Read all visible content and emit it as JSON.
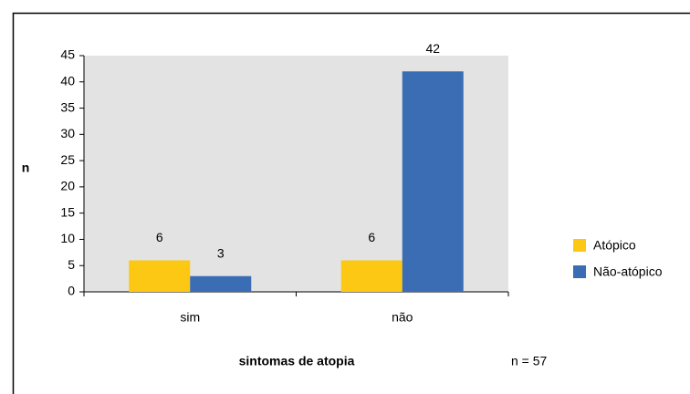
{
  "chart_data": {
    "type": "bar",
    "categories": [
      "sim",
      "não"
    ],
    "series": [
      {
        "name": "Atópico",
        "color": "#fcc814",
        "values": [
          6,
          6
        ]
      },
      {
        "name": "Não-atópico",
        "color": "#3a6db4",
        "values": [
          3,
          42
        ]
      }
    ],
    "ylim": [
      0,
      45
    ],
    "yticks": [
      0,
      5,
      10,
      15,
      20,
      25,
      30,
      35,
      40,
      45
    ],
    "ylabel": "n",
    "xlabel": "sintomas de atopia",
    "annotation": "n = 57",
    "legend": "right",
    "grid": false
  }
}
